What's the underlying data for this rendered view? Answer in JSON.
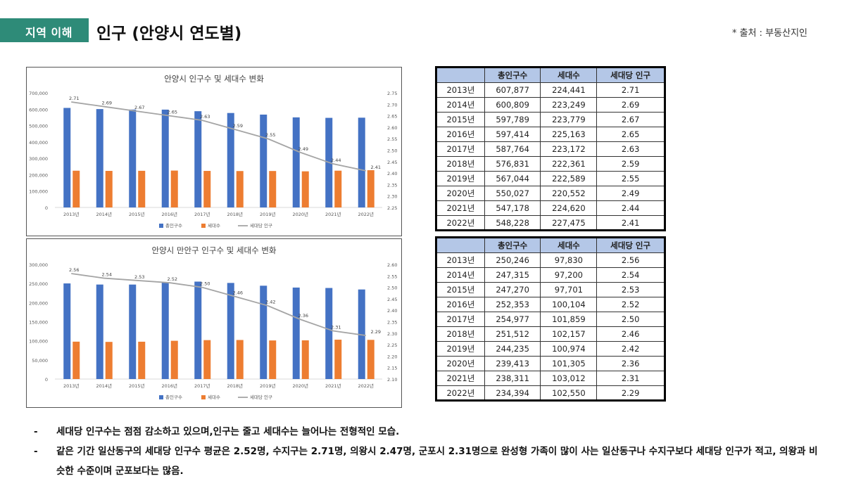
{
  "header": {
    "tag": "지역 이해",
    "title": "인구 (안양시 연도별)",
    "source": "* 출처 : 부동산지인"
  },
  "chart_data": [
    {
      "type": "bar",
      "title": "안양시 인구수 및 세대수 변화",
      "categories": [
        "2013년",
        "2014년",
        "2015년",
        "2016년",
        "2017년",
        "2018년",
        "2019년",
        "2020년",
        "2021년",
        "2022년"
      ],
      "series": [
        {
          "name": "총인구수",
          "type": "bar",
          "axis": "left",
          "color": "#4472c4",
          "values": [
            607877,
            600809,
            597789,
            597414,
            587764,
            576831,
            567044,
            550027,
            547178,
            548228
          ]
        },
        {
          "name": "세대수",
          "type": "bar",
          "axis": "left",
          "color": "#ed7d31",
          "values": [
            224441,
            223249,
            223779,
            225163,
            223172,
            222361,
            222589,
            220552,
            224620,
            227475
          ]
        },
        {
          "name": "세대당 인구",
          "type": "line",
          "axis": "right",
          "color": "#a5a5a5",
          "values": [
            2.71,
            2.69,
            2.67,
            2.65,
            2.63,
            2.59,
            2.55,
            2.49,
            2.44,
            2.41
          ]
        }
      ],
      "y_left": {
        "min": 0,
        "max": 700000,
        "ticks": [
          "0",
          "100,000",
          "200,000",
          "300,000",
          "400,000",
          "500,000",
          "600,000",
          "700,000"
        ]
      },
      "y_right": {
        "min": 2.25,
        "max": 2.75,
        "ticks": [
          "2.25",
          "2.30",
          "2.35",
          "2.40",
          "2.45",
          "2.50",
          "2.55",
          "2.60",
          "2.65",
          "2.70",
          "2.75"
        ]
      },
      "data_labels": [
        "2.71",
        "2.69",
        "2.67",
        "2.65",
        "2.63",
        "2.59",
        "2.55",
        "2.49",
        "2.44",
        "2.41"
      ],
      "legend_position": "bottom"
    },
    {
      "type": "bar",
      "title": "안양시 만안구 인구수 및 세대수 변화",
      "categories": [
        "2013년",
        "2014년",
        "2015년",
        "2016년",
        "2017년",
        "2018년",
        "2019년",
        "2020년",
        "2021년",
        "2022년"
      ],
      "series": [
        {
          "name": "총인구수",
          "type": "bar",
          "axis": "left",
          "color": "#4472c4",
          "values": [
            250246,
            247315,
            247270,
            252353,
            254977,
            251512,
            244235,
            239413,
            238311,
            234394
          ]
        },
        {
          "name": "세대수",
          "type": "bar",
          "axis": "left",
          "color": "#ed7d31",
          "values": [
            97830,
            97200,
            97701,
            100104,
            101859,
            102157,
            100974,
            101305,
            103012,
            102550
          ]
        },
        {
          "name": "세대당 인구",
          "type": "line",
          "axis": "right",
          "color": "#a5a5a5",
          "values": [
            2.56,
            2.54,
            2.53,
            2.52,
            2.5,
            2.46,
            2.42,
            2.36,
            2.31,
            2.29
          ]
        }
      ],
      "y_left": {
        "min": 0,
        "max": 300000,
        "ticks": [
          "0",
          "50,000",
          "100,000",
          "150,000",
          "200,000",
          "250,000",
          "300,000"
        ]
      },
      "y_right": {
        "min": 2.1,
        "max": 2.6,
        "ticks": [
          "2.10",
          "2.15",
          "2.20",
          "2.25",
          "2.30",
          "2.35",
          "2.40",
          "2.45",
          "2.50",
          "2.55",
          "2.60"
        ]
      },
      "data_labels": [
        "2.56",
        "2.54",
        "2.53",
        "2.52",
        "2.50",
        "2.46",
        "2.42",
        "2.36",
        "2.31",
        "2.29"
      ],
      "legend_position": "bottom"
    }
  ],
  "tables": [
    {
      "headers": [
        "",
        "총인구수",
        "세대수",
        "세대당 인구"
      ],
      "rows": [
        [
          "2013년",
          "607,877",
          "224,441",
          "2.71"
        ],
        [
          "2014년",
          "600,809",
          "223,249",
          "2.69"
        ],
        [
          "2015년",
          "597,789",
          "223,779",
          "2.67"
        ],
        [
          "2016년",
          "597,414",
          "225,163",
          "2.65"
        ],
        [
          "2017년",
          "587,764",
          "223,172",
          "2.63"
        ],
        [
          "2018년",
          "576,831",
          "222,361",
          "2.59"
        ],
        [
          "2019년",
          "567,044",
          "222,589",
          "2.55"
        ],
        [
          "2020년",
          "550,027",
          "220,552",
          "2.49"
        ],
        [
          "2021년",
          "547,178",
          "224,620",
          "2.44"
        ],
        [
          "2022년",
          "548,228",
          "227,475",
          "2.41"
        ]
      ]
    },
    {
      "headers": [
        "",
        "총인구수",
        "세대수",
        "세대당 인구"
      ],
      "rows": [
        [
          "2013년",
          "250,246",
          "97,830",
          "2.56"
        ],
        [
          "2014년",
          "247,315",
          "97,200",
          "2.54"
        ],
        [
          "2015년",
          "247,270",
          "97,701",
          "2.53"
        ],
        [
          "2016년",
          "252,353",
          "100,104",
          "2.52"
        ],
        [
          "2017년",
          "254,977",
          "101,859",
          "2.50"
        ],
        [
          "2018년",
          "251,512",
          "102,157",
          "2.46"
        ],
        [
          "2019년",
          "244,235",
          "100,974",
          "2.42"
        ],
        [
          "2020년",
          "239,413",
          "101,305",
          "2.36"
        ],
        [
          "2021년",
          "238,311",
          "103,012",
          "2.31"
        ],
        [
          "2022년",
          "234,394",
          "102,550",
          "2.29"
        ]
      ]
    }
  ],
  "notes": [
    "세대당 인구수는 점점 감소하고 있으며,인구는 줄고 세대수는 늘어나는 전형적인 모습.",
    "같은 기간 일산동구의 세대당 인구수 평균은 2.52명, 수지구는 2.71명, 의왕시 2.47명, 군포시 2.31명으로 완성형 가족이 많이 사는 일산동구나 수지구보다 세대당 인구가 적고, 의왕과 비슷한 수준이며 군포보다는 많음."
  ]
}
